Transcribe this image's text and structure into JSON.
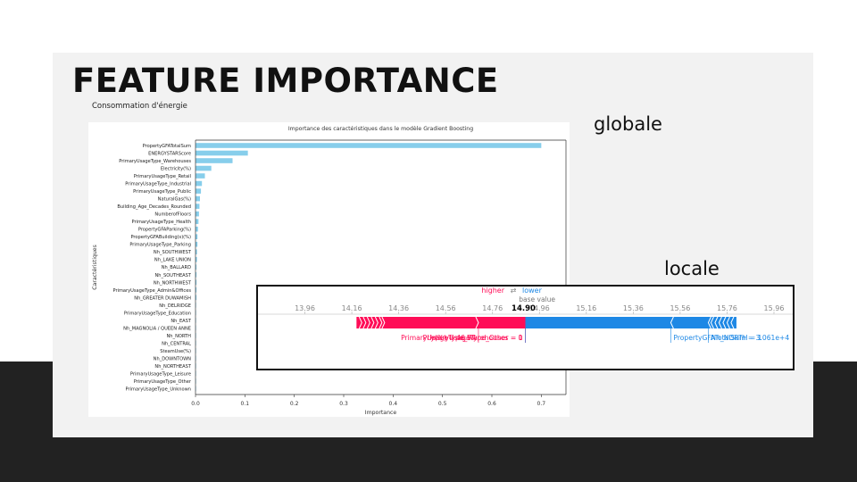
{
  "slide": {
    "title": "FEATURE IMPORTANCE",
    "subtitle": "Consommation d'énergie",
    "label_global": "globale",
    "label_local": "locale"
  },
  "chart_data": [
    {
      "type": "bar",
      "orientation": "horizontal",
      "title": "Importance des caractéristiques dans le modèle Gradient Boosting",
      "xlabel": "Importance",
      "ylabel": "Caractéristiques",
      "xlim": [
        0,
        0.75
      ],
      "xticks": [
        "0.0",
        "0.1",
        "0.2",
        "0.3",
        "0.4",
        "0.5",
        "0.6",
        "0.7"
      ],
      "color": "#87ceeb",
      "categories": [
        "PropertyGFATotalSum",
        "ENERGYSTARScore",
        "PrimaryUsageType_Warehouses",
        "Electricity(%)",
        "PrimaryUsageType_Retail",
        "PrimaryUsageType_Industrial",
        "PrimaryUsageType_Public",
        "NaturalGas(%)",
        "Building_Age_Decades_Rounded",
        "NumberofFloors",
        "PrimaryUsageType_Health",
        "PropertyGFAParking(%)",
        "PropertyGFABuilding(s)(%)",
        "PrimaryUsageType_Parking",
        "Nh_SOUTHWEST",
        "Nh_LAKE UNION",
        "Nh_BALLARD",
        "Nh_SOUTHEAST",
        "Nh_NORTHWEST",
        "PrimaryUsageType_Admin&Offices",
        "Nh_GREATER DUWAMISH",
        "Nh_DELRIDGE",
        "PrimaryUsageType_Education",
        "Nh_EAST",
        "Nh_MAGNOLIA / QUEEN ANNE",
        "Nh_NORTH",
        "Nh_CENTRAL",
        "SteamUse(%)",
        "Nh_DOWNTOWN",
        "Nh_NORTHEAST",
        "PrimaryUsageType_Leisure",
        "PrimaryUsageType_Other",
        "PrimaryUsageType_Unknown"
      ],
      "values": [
        0.7,
        0.106,
        0.075,
        0.032,
        0.019,
        0.013,
        0.011,
        0.009,
        0.008,
        0.007,
        0.006,
        0.005,
        0.004,
        0.004,
        0.003,
        0.003,
        0.002,
        0.002,
        0.002,
        0.002,
        0.002,
        0.001,
        0.001,
        0.001,
        0.001,
        0.001,
        0.001,
        0.001,
        0.001,
        0.0005,
        0.0005,
        0.0003,
        0.0002
      ]
    },
    {
      "type": "force",
      "title": "",
      "higher_label": "higher",
      "lower_label": "lower",
      "arrow_glyph": "⇄",
      "base_value_label": "base value",
      "xlim": [
        13.76,
        16.04
      ],
      "xticks": [
        "13.96",
        "14.16",
        "14.36",
        "14.56",
        "14.76",
        "14.96",
        "15.16",
        "15.36",
        "15.56",
        "15.76",
        "15.96"
      ],
      "output_value": 14.9,
      "output_value_label": "14.90",
      "base_value": 14.95,
      "positive_color": "#ff0d57",
      "negative_color": "#1e88e5",
      "positive_segments": [
        {
          "start": 14.18,
          "end": 14.3,
          "label": ""
        },
        {
          "start": 14.3,
          "end": 14.7,
          "label": "y(%) = 46.57"
        },
        {
          "start": 14.7,
          "end": 14.9,
          "label": "PrimaryUsageType_Warehouses = 0"
        }
      ],
      "negative_segments": [
        {
          "start": 14.9,
          "end": 15.52,
          "label": "PrimaryUsageType_Other = 1"
        },
        {
          "start": 15.52,
          "end": 15.68,
          "label": "PropertyGFATotalSum = 3.061e+4"
        },
        {
          "start": 15.68,
          "end": 15.8,
          "label": "Nh_NORTH = 1"
        }
      ]
    }
  ]
}
